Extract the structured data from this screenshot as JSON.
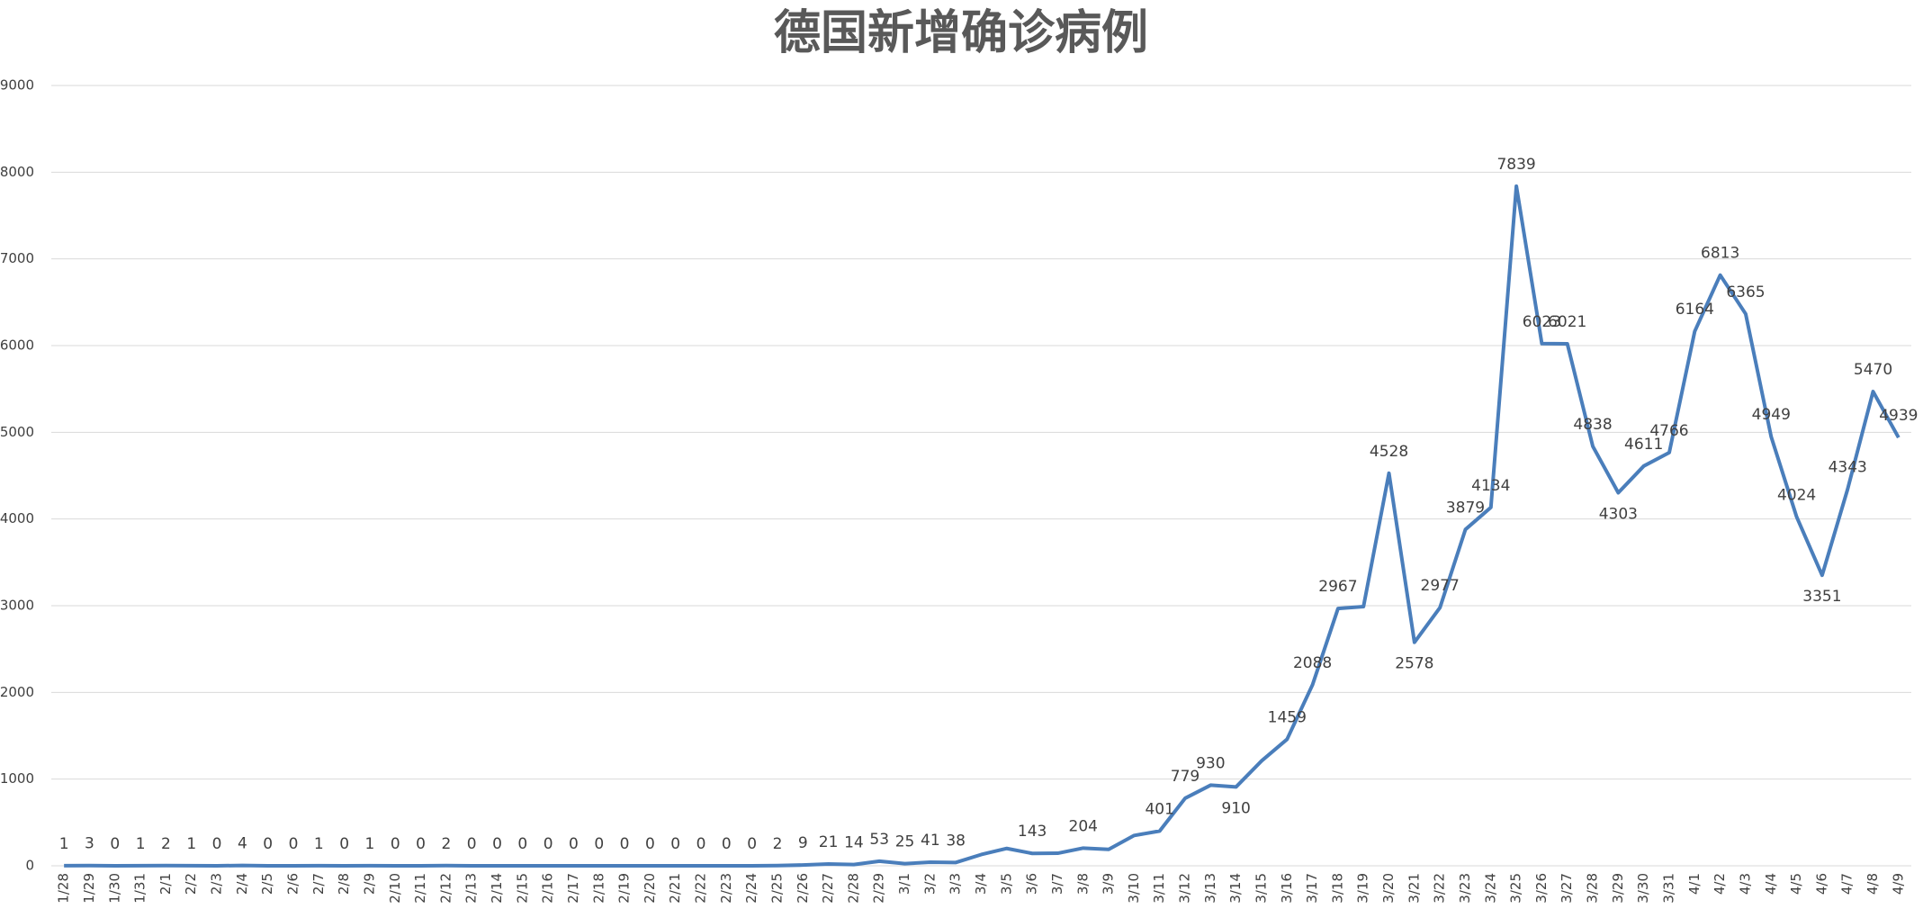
{
  "chart_data": {
    "type": "line",
    "title": "德国新增确诊病例",
    "categories": [
      "1/28",
      "1/29",
      "1/30",
      "1/31",
      "2/1",
      "2/2",
      "2/3",
      "2/4",
      "2/5",
      "2/6",
      "2/7",
      "2/8",
      "2/9",
      "2/10",
      "2/11",
      "2/12",
      "2/13",
      "2/14",
      "2/15",
      "2/16",
      "2/17",
      "2/18",
      "2/19",
      "2/20",
      "2/21",
      "2/22",
      "2/23",
      "2/24",
      "2/25",
      "2/26",
      "2/27",
      "2/28",
      "2/29",
      "3/1",
      "3/2",
      "3/3",
      "3/4",
      "3/5",
      "3/6",
      "3/7",
      "3/8",
      "3/9",
      "3/10",
      "3/11",
      "3/12",
      "3/13",
      "3/14",
      "3/15",
      "3/16",
      "3/17",
      "3/18",
      "3/19",
      "3/20",
      "3/21",
      "3/22",
      "3/23",
      "3/24",
      "3/25",
      "3/26",
      "3/27",
      "3/28",
      "3/29",
      "3/30",
      "3/31",
      "4/1",
      "4/2",
      "4/3",
      "4/4",
      "4/5",
      "4/6",
      "4/7",
      "4/8",
      "4/9"
    ],
    "values": [
      1,
      3,
      0,
      1,
      2,
      1,
      0,
      4,
      0,
      0,
      1,
      0,
      1,
      0,
      0,
      2,
      0,
      0,
      0,
      0,
      0,
      0,
      0,
      0,
      0,
      0,
      0,
      0,
      2,
      9,
      21,
      14,
      53,
      25,
      41,
      38,
      130,
      200,
      143,
      145,
      204,
      190,
      350,
      401,
      779,
      930,
      910,
      1210,
      1459,
      2088,
      2967,
      2990,
      4528,
      2578,
      2977,
      3879,
      4134,
      7839,
      6023,
      6021,
      4838,
      4303,
      4611,
      4766,
      6164,
      6813,
      6365,
      4949,
      4024,
      3351,
      4343,
      5470,
      4939
    ],
    "labels_shown": [
      true,
      true,
      true,
      true,
      true,
      true,
      true,
      true,
      true,
      true,
      true,
      true,
      true,
      true,
      true,
      true,
      true,
      true,
      true,
      true,
      true,
      true,
      true,
      true,
      true,
      true,
      true,
      true,
      true,
      true,
      true,
      true,
      true,
      true,
      true,
      true,
      false,
      false,
      true,
      false,
      true,
      false,
      false,
      true,
      true,
      true,
      true,
      false,
      true,
      true,
      true,
      false,
      true,
      true,
      true,
      true,
      true,
      true,
      true,
      true,
      true,
      true,
      true,
      true,
      true,
      true,
      true,
      true,
      true,
      true,
      true,
      true,
      true
    ],
    "color": "#4a7ebb",
    "ylim": [
      0,
      9000
    ],
    "yticks": [
      0,
      1000,
      2000,
      3000,
      4000,
      5000,
      6000,
      7000,
      8000,
      9000
    ],
    "grid": true
  }
}
